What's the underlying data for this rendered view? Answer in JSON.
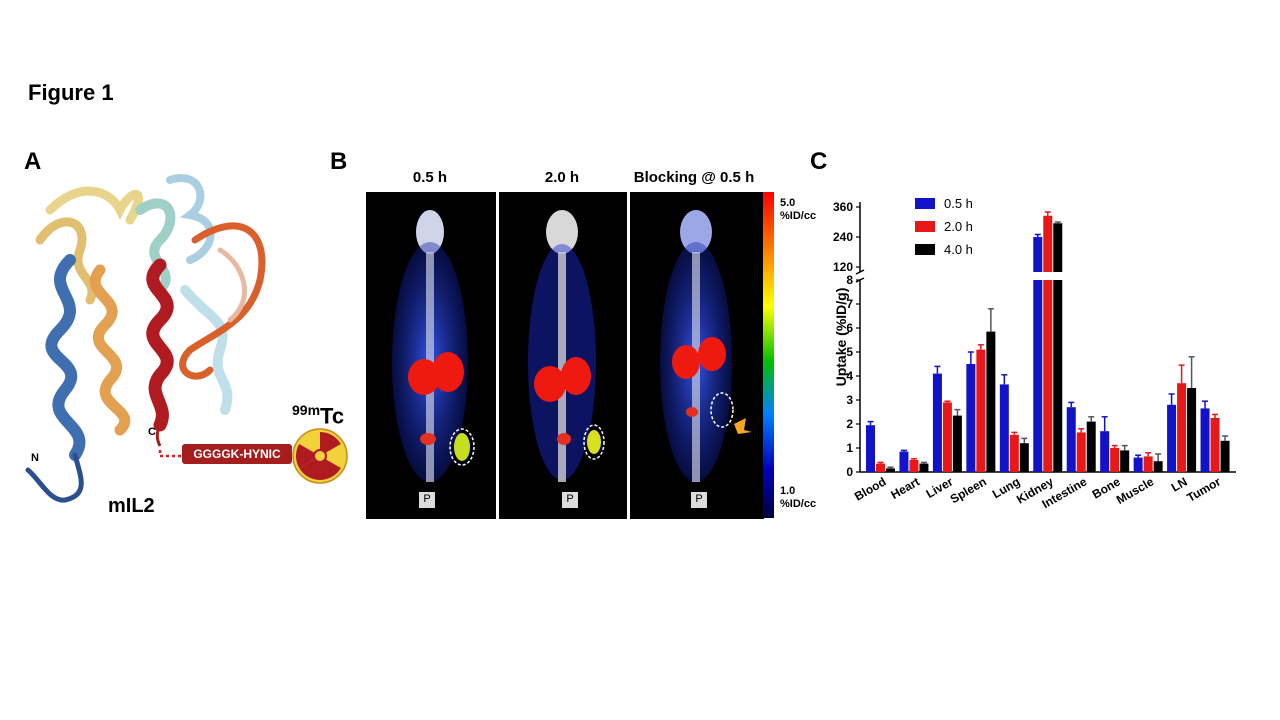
{
  "figure_title": "Figure 1",
  "panels": {
    "a": {
      "letter": "A",
      "protein_label": "mIL2",
      "n_term": "N",
      "c_term": "C",
      "linker": "GGGGK-HYNIC",
      "isotope_mass": "99m",
      "isotope_symbol": "Tc"
    },
    "b": {
      "letter": "B",
      "timepoints": [
        "0.5 h",
        "2.0 h",
        "Blocking @ 0.5 h"
      ],
      "scale_max": "5.0",
      "scale_min": "1.0",
      "scale_unit": "%ID/cc",
      "marker_letter": "P"
    },
    "c": {
      "letter": "C"
    }
  },
  "chart_data": {
    "type": "bar",
    "ylabel": "Uptake (%ID/g)",
    "categories": [
      "Blood",
      "Heart",
      "Liver",
      "Spleen",
      "Lung",
      "Kidney",
      "Intestine",
      "Bone",
      "Muscle",
      "LN",
      "Tumor"
    ],
    "series": [
      {
        "name": "0.5 h",
        "color": "#1212c8",
        "values": [
          1.95,
          0.85,
          4.1,
          4.5,
          3.65,
          240,
          2.7,
          1.7,
          0.6,
          2.8,
          2.65
        ],
        "errors": [
          0.15,
          0.05,
          0.3,
          0.5,
          0.4,
          10,
          0.2,
          0.6,
          0.1,
          0.45,
          0.3
        ]
      },
      {
        "name": "2.0 h",
        "color": "#e81818",
        "values": [
          0.35,
          0.5,
          2.9,
          5.1,
          1.55,
          325,
          1.65,
          1.0,
          0.65,
          3.7,
          2.25
        ],
        "errors": [
          0.05,
          0.05,
          0.05,
          0.2,
          0.1,
          15,
          0.15,
          0.1,
          0.15,
          0.75,
          0.15
        ]
      },
      {
        "name": "4.0 h",
        "color": "#000000",
        "values": [
          0.15,
          0.35,
          2.35,
          5.85,
          1.2,
          295,
          2.1,
          0.9,
          0.45,
          3.5,
          1.3
        ],
        "errors": [
          0.05,
          0.05,
          0.25,
          0.95,
          0.2,
          5,
          0.2,
          0.2,
          0.3,
          1.3,
          0.2
        ]
      }
    ],
    "y_lower": {
      "range": [
        0,
        8
      ],
      "ticks": [
        0,
        1,
        2,
        3,
        4,
        5,
        6,
        7,
        8
      ]
    },
    "y_upper": {
      "range": [
        100,
        380
      ],
      "ticks": [
        120,
        240,
        360
      ]
    },
    "axis_break": true,
    "legend_position": "top-left",
    "grid": false
  }
}
